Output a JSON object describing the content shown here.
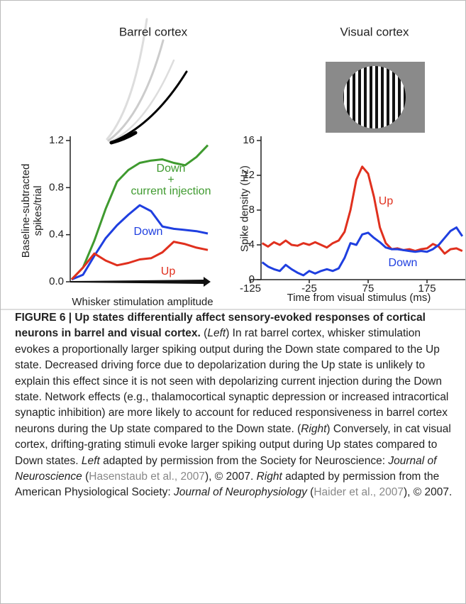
{
  "chart_data": [
    {
      "type": "line",
      "title": "Barrel cortex",
      "xlabel": "Whisker stimulation amplitude",
      "ylabel": "Baseline-subtracted\nspikes/trial",
      "ylim": [
        0,
        1.2
      ],
      "yticks": [
        {
          "value": 0,
          "label": "0.0"
        },
        0.4,
        0.8,
        1.2
      ],
      "series": [
        {
          "name": "Down\n+\ncurrent injection",
          "color": "#3f9a2f",
          "values": [
            0.02,
            0.12,
            0.35,
            0.62,
            0.85,
            0.95,
            1.01,
            1.03,
            1.04,
            1.01,
            0.99,
            1.06,
            1.16
          ]
        },
        {
          "name": "Down",
          "color": "#1f3fe0",
          "values": [
            0.02,
            0.06,
            0.22,
            0.37,
            0.48,
            0.57,
            0.65,
            0.6,
            0.47,
            0.45,
            0.44,
            0.43,
            0.41
          ]
        },
        {
          "name": "Up",
          "color": "#e0301e",
          "values": [
            0.02,
            0.12,
            0.24,
            0.18,
            0.14,
            0.16,
            0.19,
            0.2,
            0.25,
            0.34,
            0.32,
            0.29,
            0.27
          ]
        }
      ]
    },
    {
      "type": "line",
      "title": "Visual cortex",
      "xlabel": "Time from visual stimulus (ms)",
      "ylabel": "Spike density (Hz)",
      "x": [
        -105,
        -95,
        -85,
        -75,
        -65,
        -55,
        -45,
        -35,
        -25,
        -15,
        -5,
        5,
        15,
        25,
        35,
        45,
        55,
        65,
        75,
        85,
        95,
        105,
        115,
        125,
        135,
        145,
        155,
        165,
        175,
        185,
        195,
        205,
        215,
        225,
        235
      ],
      "xlim": [
        -125,
        240
      ],
      "xticks": [
        -125,
        -25,
        75,
        175
      ],
      "ylim": [
        0,
        16
      ],
      "yticks": [
        0,
        4,
        8,
        12,
        16
      ],
      "series": [
        {
          "name": "Up",
          "color": "#e0301e",
          "values": [
            4.2,
            3.8,
            4.3,
            4.0,
            4.5,
            4.0,
            3.9,
            4.2,
            4.0,
            4.3,
            4.0,
            3.7,
            4.2,
            4.5,
            5.5,
            8.0,
            11.5,
            13.0,
            12.2,
            9.5,
            6.0,
            4.2,
            3.5,
            3.6,
            3.4,
            3.5,
            3.3,
            3.5,
            3.6,
            4.1,
            3.8,
            3.0,
            3.5,
            3.6,
            3.3
          ]
        },
        {
          "name": "Down",
          "color": "#1f3fe0",
          "values": [
            2.0,
            1.5,
            1.2,
            1.0,
            1.7,
            1.2,
            0.8,
            0.5,
            1.0,
            0.7,
            1.0,
            1.2,
            1.0,
            1.3,
            2.5,
            4.2,
            4.0,
            5.2,
            5.4,
            4.8,
            4.3,
            3.7,
            3.5,
            3.5,
            3.4,
            3.3,
            3.2,
            3.3,
            3.2,
            3.5,
            4.0,
            4.8,
            5.6,
            6.0,
            5.0
          ]
        }
      ]
    }
  ],
  "caption": [
    {
      "text": "FIGURE 6 | Up states differentially affect sensory-evoked responses of cortical neurons in barrel and visual cortex.",
      "style": "bold"
    },
    {
      "text": " (",
      "style": "normal"
    },
    {
      "text": "Left",
      "style": "italic"
    },
    {
      "text": ") In rat barrel cortex, whisker stimulation evokes a proportionally larger spiking output during the Down state compared to the Up state. Decreased driving force due to depolarization during the Up state is unlikely to explain this effect since it is not seen with depolarizing current injection during the Down state. Network effects (e.g., thalamocortical synaptic depression or increased intracortical synaptic inhibition) are more likely to account for reduced responsiveness in barrel cortex neurons during the Up state compared to the Down state. (",
      "style": "normal"
    },
    {
      "text": "Right",
      "style": "italic"
    },
    {
      "text": ") Conversely, in cat visual cortex, drifting-grating stimuli evoke larger spiking output during Up states compared to Down states. ",
      "style": "normal"
    },
    {
      "text": "Left",
      "style": "italic"
    },
    {
      "text": " adapted by permission from the Society for Neuroscience: ",
      "style": "normal"
    },
    {
      "text": "Journal of Neuroscience",
      "style": "italic"
    },
    {
      "text": " (",
      "style": "normal"
    },
    {
      "text": "Hasenstaub et al., 2007",
      "style": "link"
    },
    {
      "text": "), © 2007. ",
      "style": "normal"
    },
    {
      "text": "Right",
      "style": "italic"
    },
    {
      "text": " adapted by permission from the American Physiological Society: ",
      "style": "normal"
    },
    {
      "text": "Journal of Neurophysiology",
      "style": "italic"
    },
    {
      "text": " (",
      "style": "normal"
    },
    {
      "text": "Haider et al., 2007",
      "style": "link"
    },
    {
      "text": "), © 2007.",
      "style": "normal"
    }
  ]
}
